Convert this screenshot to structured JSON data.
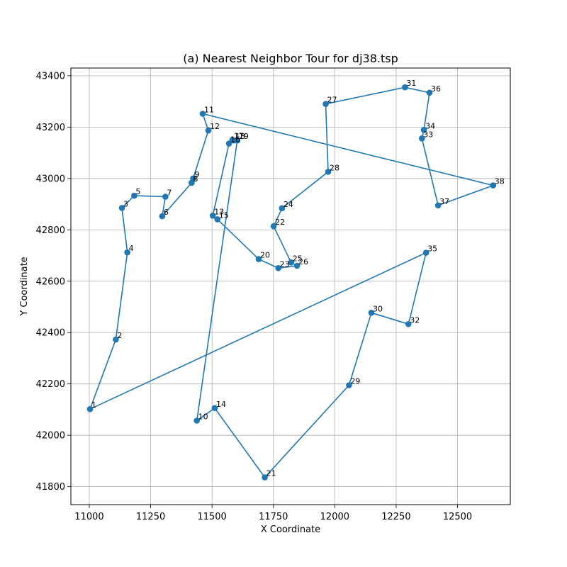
{
  "chart_data": {
    "type": "line",
    "title": "(a) Nearest Neighbor Tour for dj38.tsp",
    "xlabel": "X Coordinate",
    "ylabel": "Y Coordinate",
    "xlim": [
      10925,
      12715
    ],
    "ylim": [
      41730,
      43430
    ],
    "xticks": [
      11000,
      11250,
      11500,
      11750,
      12000,
      12250,
      12500
    ],
    "yticks": [
      41800,
      42000,
      42200,
      42400,
      42600,
      42800,
      43000,
      43200,
      43400
    ],
    "grid": true,
    "line_color": "#1f77b4",
    "cities": [
      {
        "id": "1",
        "x": 11003,
        "y": 42102
      },
      {
        "id": "2",
        "x": 11108,
        "y": 42373
      },
      {
        "id": "3",
        "x": 11133,
        "y": 42885
      },
      {
        "id": "4",
        "x": 11155,
        "y": 42712
      },
      {
        "id": "5",
        "x": 11183,
        "y": 42933
      },
      {
        "id": "6",
        "x": 11297,
        "y": 42853
      },
      {
        "id": "7",
        "x": 11310,
        "y": 42929
      },
      {
        "id": "8",
        "x": 11417,
        "y": 42983
      },
      {
        "id": "9",
        "x": 11423,
        "y": 43000
      },
      {
        "id": "10",
        "x": 11438,
        "y": 42057
      },
      {
        "id": "11",
        "x": 11462,
        "y": 43252
      },
      {
        "id": "12",
        "x": 11485,
        "y": 43187
      },
      {
        "id": "13",
        "x": 11503,
        "y": 42855
      },
      {
        "id": "14",
        "x": 11511,
        "y": 42106
      },
      {
        "id": "15",
        "x": 11522,
        "y": 42841
      },
      {
        "id": "16",
        "x": 11569,
        "y": 43136
      },
      {
        "id": "17",
        "x": 11583,
        "y": 43150
      },
      {
        "id": "18",
        "x": 11589,
        "y": 43148
      },
      {
        "id": "19",
        "x": 11603,
        "y": 43148
      },
      {
        "id": "20",
        "x": 11690,
        "y": 42686
      },
      {
        "id": "21",
        "x": 11715,
        "y": 41836
      },
      {
        "id": "22",
        "x": 11751,
        "y": 42814
      },
      {
        "id": "23",
        "x": 11770,
        "y": 42651
      },
      {
        "id": "24",
        "x": 11785,
        "y": 42884
      },
      {
        "id": "25",
        "x": 11822,
        "y": 42673
      },
      {
        "id": "26",
        "x": 11846,
        "y": 42660
      },
      {
        "id": "27",
        "x": 11963,
        "y": 43290
      },
      {
        "id": "28",
        "x": 11973,
        "y": 43026
      },
      {
        "id": "29",
        "x": 12058,
        "y": 42195
      },
      {
        "id": "30",
        "x": 12149,
        "y": 42477
      },
      {
        "id": "31",
        "x": 12286,
        "y": 43355
      },
      {
        "id": "32",
        "x": 12300,
        "y": 42433
      },
      {
        "id": "33",
        "x": 12355,
        "y": 43156
      },
      {
        "id": "34",
        "x": 12363,
        "y": 43189
      },
      {
        "id": "35",
        "x": 12372,
        "y": 42711
      },
      {
        "id": "36",
        "x": 12386,
        "y": 43334
      },
      {
        "id": "37",
        "x": 12421,
        "y": 42895
      },
      {
        "id": "38",
        "x": 12645,
        "y": 42973
      }
    ],
    "tour": [
      "1",
      "2",
      "4",
      "3",
      "5",
      "7",
      "6",
      "8",
      "9",
      "12",
      "11",
      "38",
      "37",
      "33",
      "34",
      "36",
      "31",
      "27",
      "28",
      "24",
      "22",
      "25",
      "26",
      "23",
      "20",
      "15",
      "13",
      "16",
      "17",
      "18",
      "19",
      "10",
      "14",
      "21",
      "29",
      "30",
      "32",
      "35",
      "1"
    ]
  }
}
